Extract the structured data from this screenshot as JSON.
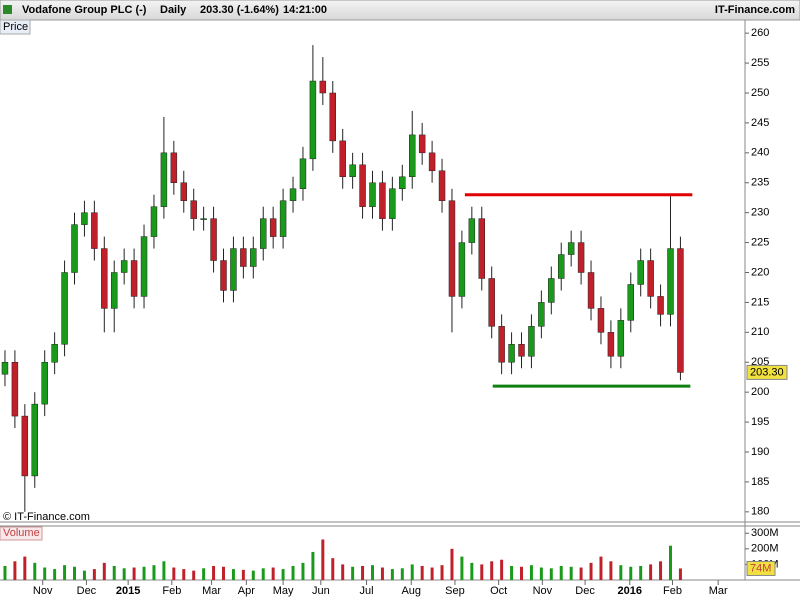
{
  "header": {
    "symbol": "Vodafone Group PLC (-)",
    "period": "Daily",
    "quote": "203.30 (-1.64%)",
    "time": "14:21:00",
    "site": "IT-Finance.com"
  },
  "chart_data": [
    {
      "type": "candlestick",
      "label": "Price",
      "credit": "© IT-Finance.com",
      "open": [
        203,
        205,
        196,
        186,
        198,
        205,
        208,
        220,
        228,
        230,
        224,
        214,
        220,
        222,
        216,
        226,
        231,
        240,
        235,
        232,
        229,
        229,
        222,
        217,
        224,
        221,
        224,
        229,
        226,
        232,
        234,
        239,
        252,
        250,
        242,
        236,
        238,
        231,
        235,
        229,
        234,
        236,
        243,
        240,
        237,
        232,
        216,
        225,
        229,
        219,
        211,
        205,
        208,
        206,
        211,
        215,
        219,
        223,
        225,
        220,
        214,
        210,
        206,
        212,
        218,
        222,
        216,
        213,
        224
      ],
      "high": [
        207,
        207,
        198,
        200,
        207,
        210,
        222,
        230,
        232,
        232,
        226,
        222,
        224,
        224,
        228,
        233,
        246,
        242,
        237,
        234,
        231,
        231,
        224,
        226,
        226,
        226,
        231,
        231,
        234,
        236,
        241,
        258,
        256,
        252,
        244,
        240,
        240,
        237,
        237,
        236,
        238,
        247,
        245,
        242,
        239,
        234,
        227,
        231,
        231,
        221,
        213,
        210,
        210,
        213,
        217,
        221,
        225,
        227,
        227,
        222,
        216,
        212,
        214,
        220,
        224,
        224,
        218,
        233,
        226
      ],
      "low": [
        201,
        194,
        180,
        184,
        196,
        203,
        206,
        218,
        226,
        222,
        210,
        210,
        218,
        214,
        214,
        224,
        229,
        233,
        230,
        227,
        227,
        220,
        215,
        215,
        219,
        219,
        222,
        224,
        224,
        230,
        232,
        237,
        248,
        240,
        234,
        234,
        229,
        229,
        227,
        227,
        232,
        234,
        238,
        235,
        230,
        210,
        214,
        223,
        217,
        209,
        203,
        203,
        204,
        204,
        209,
        213,
        217,
        221,
        218,
        212,
        208,
        204,
        204,
        210,
        216,
        214,
        211,
        211,
        202
      ],
      "close": [
        205,
        196,
        186,
        198,
        205,
        208,
        220,
        228,
        230,
        224,
        214,
        220,
        222,
        216,
        226,
        231,
        240,
        235,
        232,
        229,
        229,
        222,
        217,
        224,
        221,
        224,
        229,
        226,
        232,
        234,
        239,
        252,
        250,
        242,
        236,
        238,
        231,
        235,
        229,
        234,
        236,
        243,
        240,
        237,
        232,
        216,
        225,
        229,
        219,
        211,
        205,
        208,
        206,
        211,
        215,
        219,
        223,
        225,
        220,
        214,
        210,
        206,
        212,
        218,
        222,
        216,
        213,
        224,
        203.3
      ],
      "up_color": "#1a9a1a",
      "down_color": "#c0202a",
      "last": 203.3,
      "last_label": "203.30",
      "last_color": "#f0e040",
      "lines": [
        {
          "y": 233,
          "x": [
            46.8,
            69.7
          ],
          "color": "#e00000"
        },
        {
          "y": 201,
          "x": [
            49.6,
            69.5
          ],
          "color": "#108010"
        }
      ],
      "xlim": [
        0,
        75
      ],
      "xticks": [
        {
          "value": 4.3,
          "label": "Nov"
        },
        {
          "value": 8.7,
          "label": "Dec"
        },
        {
          "value": 12.9,
          "label": "2015"
        },
        {
          "value": 17.3,
          "label": "Feb"
        },
        {
          "value": 21.3,
          "label": "Mar"
        },
        {
          "value": 24.8,
          "label": "Apr"
        },
        {
          "value": 28.5,
          "label": "May"
        },
        {
          "value": 32.3,
          "label": "Jun"
        },
        {
          "value": 36.9,
          "label": "Jul"
        },
        {
          "value": 41.4,
          "label": "Aug"
        },
        {
          "value": 45.8,
          "label": "Sep"
        },
        {
          "value": 50.2,
          "label": "Oct"
        },
        {
          "value": 54.6,
          "label": "Nov"
        },
        {
          "value": 58.9,
          "label": "Dec"
        },
        {
          "value": 63.4,
          "label": "2016"
        },
        {
          "value": 67.7,
          "label": "Feb"
        },
        {
          "value": 72.3,
          "label": "Mar"
        }
      ],
      "ylim": [
        178.3,
        262.2
      ],
      "yticks": [
        180,
        185,
        190,
        195,
        200,
        205,
        210,
        215,
        220,
        225,
        230,
        235,
        240,
        245,
        250,
        255,
        260
      ]
    },
    {
      "type": "bar",
      "label": "Volume",
      "values": [
        90,
        120,
        150,
        110,
        80,
        70,
        95,
        85,
        60,
        70,
        110,
        90,
        75,
        80,
        85,
        95,
        120,
        80,
        70,
        60,
        75,
        90,
        85,
        70,
        65,
        60,
        75,
        80,
        70,
        90,
        110,
        180,
        260,
        140,
        100,
        85,
        90,
        95,
        80,
        70,
        75,
        100,
        90,
        80,
        95,
        200,
        150,
        110,
        100,
        120,
        130,
        90,
        85,
        95,
        80,
        75,
        90,
        85,
        80,
        110,
        150,
        120,
        95,
        85,
        90,
        100,
        120,
        220,
        74
      ],
      "value_labels": {
        "68": "74M"
      },
      "last_color": "#f0e040",
      "xlim": [
        0,
        75
      ],
      "ylim": [
        0,
        340
      ],
      "yticks": [
        {
          "value": 100,
          "label": "100M"
        },
        {
          "value": 200,
          "label": "200M"
        },
        {
          "value": 300,
          "label": "300M"
        }
      ]
    }
  ]
}
